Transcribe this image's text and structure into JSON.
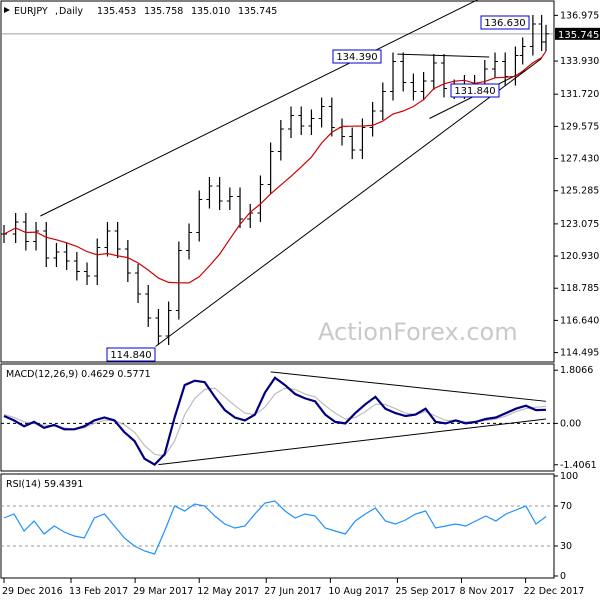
{
  "watermark": "ActionForex.com",
  "chart_data": {
    "type": "candlestick",
    "symbol": "EURJPY",
    "timeframe": "Daily",
    "ohlc": {
      "open": "135.453",
      "high": "135.758",
      "low": "135.010",
      "close": "135.745"
    },
    "last_price": 135.745,
    "last_price_label": "135.745",
    "price_panel": {
      "ylim": [
        114.0,
        137.8
      ],
      "ticks": [
        "136.975",
        "133.930",
        "131.720",
        "129.575",
        "127.430",
        "125.285",
        "123.075",
        "120.930",
        "118.785",
        "116.640",
        "114.495"
      ],
      "moving_average_color": "#d00000",
      "annotations": [
        {
          "label": "136.630",
          "value": 136.63
        },
        {
          "label": "134.390",
          "value": 134.39
        },
        {
          "label": "131.840",
          "value": 131.84
        },
        {
          "label": "114.840",
          "value": 114.84
        }
      ],
      "trend_channel": {
        "upper": [
          [
            "2017-01-23",
            123.6
          ],
          [
            "2017-11-27",
            138.4
          ]
        ],
        "lower": [
          [
            "2017-04-12",
            114.9
          ],
          [
            "2018-01-02",
            134.1
          ]
        ]
      },
      "triangle_lines": {
        "top": [
          [
            "2017-09-25",
            134.39
          ],
          [
            "2017-11-27",
            134.2
          ]
        ],
        "bottom": [
          [
            "2017-10-17",
            130.1
          ],
          [
            "2017-12-22",
            133.3
          ]
        ]
      },
      "series": [
        {
          "date": "2016-12-29",
          "close": 122.4
        },
        {
          "date": "2017-01-06",
          "close": 123.2
        },
        {
          "date": "2017-01-13",
          "close": 121.9
        },
        {
          "date": "2017-01-20",
          "close": 122.6
        },
        {
          "date": "2017-01-27",
          "close": 120.8
        },
        {
          "date": "2017-02-03",
          "close": 121.2
        },
        {
          "date": "2017-02-10",
          "close": 120.6
        },
        {
          "date": "2017-02-17",
          "close": 119.9
        },
        {
          "date": "2017-02-24",
          "close": 119.6
        },
        {
          "date": "2017-03-03",
          "close": 121.5
        },
        {
          "date": "2017-03-10",
          "close": 122.6
        },
        {
          "date": "2017-03-17",
          "close": 121.4
        },
        {
          "date": "2017-03-24",
          "close": 119.8
        },
        {
          "date": "2017-03-31",
          "close": 118.4
        },
        {
          "date": "2017-04-07",
          "close": 116.8
        },
        {
          "date": "2017-04-14",
          "close": 115.6
        },
        {
          "date": "2017-04-21",
          "close": 117.3
        },
        {
          "date": "2017-04-28",
          "close": 121.3
        },
        {
          "date": "2017-05-05",
          "close": 122.5
        },
        {
          "date": "2017-05-12",
          "close": 124.7
        },
        {
          "date": "2017-05-19",
          "close": 125.6
        },
        {
          "date": "2017-05-26",
          "close": 124.6
        },
        {
          "date": "2017-06-02",
          "close": 124.9
        },
        {
          "date": "2017-06-09",
          "close": 123.4
        },
        {
          "date": "2017-06-16",
          "close": 123.8
        },
        {
          "date": "2017-06-23",
          "close": 125.7
        },
        {
          "date": "2017-06-30",
          "close": 127.9
        },
        {
          "date": "2017-07-07",
          "close": 129.4
        },
        {
          "date": "2017-07-14",
          "close": 130.3
        },
        {
          "date": "2017-07-21",
          "close": 129.6
        },
        {
          "date": "2017-07-28",
          "close": 130.1
        },
        {
          "date": "2017-08-04",
          "close": 130.9
        },
        {
          "date": "2017-08-11",
          "close": 129.5
        },
        {
          "date": "2017-08-18",
          "close": 128.9
        },
        {
          "date": "2017-08-25",
          "close": 128.0
        },
        {
          "date": "2017-09-01",
          "close": 129.5
        },
        {
          "date": "2017-09-08",
          "close": 130.6
        },
        {
          "date": "2017-09-15",
          "close": 131.9
        },
        {
          "date": "2017-09-22",
          "close": 133.9
        },
        {
          "date": "2017-09-29",
          "close": 132.5
        },
        {
          "date": "2017-10-06",
          "close": 131.9
        },
        {
          "date": "2017-10-13",
          "close": 132.6
        },
        {
          "date": "2017-10-20",
          "close": 133.8
        },
        {
          "date": "2017-10-27",
          "close": 132.1
        },
        {
          "date": "2017-11-03",
          "close": 132.0
        },
        {
          "date": "2017-11-10",
          "close": 132.4
        },
        {
          "date": "2017-11-17",
          "close": 132.3
        },
        {
          "date": "2017-11-24",
          "close": 133.4
        },
        {
          "date": "2017-12-01",
          "close": 133.9
        },
        {
          "date": "2017-12-08",
          "close": 132.9
        },
        {
          "date": "2017-12-15",
          "close": 134.3
        },
        {
          "date": "2017-12-20",
          "close": 134.9
        },
        {
          "date": "2017-12-27",
          "close": 136.4
        },
        {
          "date": "2018-01-02",
          "close": 135.2
        },
        {
          "date": "2018-01-05",
          "close": 135.745
        }
      ]
    },
    "macd_panel": {
      "label": "MACD(12,26,9) 0.4629 0.5771",
      "ylim": [
        -1.55,
        1.95
      ],
      "ticks": [
        "1.8066",
        "0.00",
        "-1.4061"
      ],
      "macd": [
        0.25,
        0.1,
        -0.1,
        0.05,
        -0.15,
        -0.05,
        -0.2,
        -0.2,
        -0.1,
        0.1,
        0.2,
        0.1,
        -0.3,
        -0.6,
        -1.2,
        -1.4,
        -1.05,
        0.2,
        1.3,
        1.45,
        1.4,
        0.9,
        0.45,
        0.2,
        0.1,
        0.3,
        1.05,
        1.55,
        1.3,
        1.0,
        0.85,
        0.75,
        0.3,
        0.05,
        0.0,
        0.35,
        0.65,
        0.9,
        0.5,
        0.35,
        0.25,
        0.3,
        0.5,
        0.05,
        0.0,
        0.1,
        0.0,
        0.05,
        0.15,
        0.2,
        0.35,
        0.5,
        0.6,
        0.45,
        0.4629
      ],
      "signal": [
        0.3,
        0.2,
        0.05,
        0.0,
        -0.05,
        -0.1,
        -0.15,
        -0.2,
        -0.15,
        0.0,
        0.1,
        0.1,
        -0.05,
        -0.3,
        -0.75,
        -1.05,
        -1.1,
        -0.6,
        0.3,
        0.85,
        1.15,
        1.2,
        0.9,
        0.6,
        0.35,
        0.3,
        0.55,
        1.0,
        1.2,
        1.15,
        1.0,
        0.9,
        0.6,
        0.35,
        0.15,
        0.2,
        0.4,
        0.65,
        0.65,
        0.5,
        0.35,
        0.3,
        0.4,
        0.25,
        0.1,
        0.1,
        0.05,
        0.05,
        0.1,
        0.15,
        0.25,
        0.4,
        0.5,
        0.55,
        0.5771
      ],
      "trend_lines": {
        "upper": [
          [
            "2017-06-30",
            1.75
          ],
          [
            "2018-01-05",
            0.75
          ]
        ],
        "lower": [
          [
            "2017-04-14",
            -1.4
          ],
          [
            "2018-01-05",
            0.15
          ]
        ]
      }
    },
    "rsi_panel": {
      "label": "RSI(14) 59.4391",
      "ylim": [
        0,
        100
      ],
      "ticks": [
        "100",
        "70",
        "30",
        "0"
      ],
      "levels": [
        70,
        30
      ],
      "values": [
        58,
        62,
        45,
        55,
        42,
        50,
        44,
        40,
        38,
        58,
        62,
        50,
        38,
        30,
        25,
        22,
        45,
        70,
        65,
        72,
        70,
        60,
        52,
        48,
        50,
        62,
        73,
        75,
        65,
        58,
        62,
        60,
        48,
        45,
        42,
        55,
        62,
        68,
        55,
        52,
        56,
        62,
        65,
        48,
        50,
        52,
        50,
        55,
        60,
        55,
        62,
        66,
        70,
        52,
        59.4391
      ]
    },
    "x_ticks": [
      {
        "label": "29 Dec 2016",
        "date": "2016-12-29"
      },
      {
        "label": "13 Feb 2017",
        "date": "2017-02-13"
      },
      {
        "label": "29 Mar 2017",
        "date": "2017-03-29"
      },
      {
        "label": "12 May 2017",
        "date": "2017-05-12"
      },
      {
        "label": "27 Jun 2017",
        "date": "2017-06-27"
      },
      {
        "label": "10 Aug 2017",
        "date": "2017-08-10"
      },
      {
        "label": "25 Sep 2017",
        "date": "2017-09-25"
      },
      {
        "label": "8 Nov 2017",
        "date": "2017-11-08"
      },
      {
        "label": "22 Dec 2017",
        "date": "2017-12-22"
      }
    ]
  }
}
